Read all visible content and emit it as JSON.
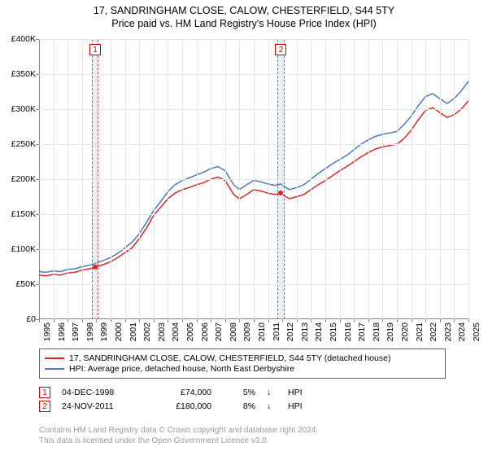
{
  "title": {
    "line1": "17, SANDRINGHAM CLOSE, CALOW, CHESTERFIELD, S44 5TY",
    "line2": "Price paid vs. HM Land Registry's House Price Index (HPI)"
  },
  "chart": {
    "type": "line",
    "background_color": "#ffffff",
    "grid_color": "#e5e5e5",
    "axis_color": "#888888",
    "x_axis": {
      "min": 1995,
      "max": 2025,
      "ticks": [
        1995,
        1996,
        1997,
        1998,
        1999,
        2000,
        2001,
        2002,
        2003,
        2004,
        2005,
        2006,
        2007,
        2008,
        2009,
        2010,
        2011,
        2012,
        2013,
        2014,
        2015,
        2016,
        2017,
        2018,
        2019,
        2020,
        2021,
        2022,
        2023,
        2024,
        2025
      ],
      "label_fontsize": 10.5,
      "label_rotation": -90
    },
    "y_axis": {
      "min": 0,
      "max": 400000,
      "ticks": [
        0,
        50000,
        100000,
        150000,
        200000,
        250000,
        300000,
        350000,
        400000
      ],
      "tick_labels": [
        "£0",
        "£50K",
        "£100K",
        "£150K",
        "£200K",
        "£250K",
        "£300K",
        "£350K",
        "£400K"
      ],
      "label_fontsize": 10.5
    },
    "series": [
      {
        "name": "17, SANDRINGHAM CLOSE, CALOW, CHESTERFIELD, S44 5TY (detached house)",
        "color": "#d62728",
        "line_width": 1.5,
        "data": [
          [
            1995.0,
            63000
          ],
          [
            1995.5,
            62000
          ],
          [
            1996.0,
            64000
          ],
          [
            1996.5,
            63000
          ],
          [
            1997.0,
            66000
          ],
          [
            1997.5,
            67000
          ],
          [
            1998.0,
            70000
          ],
          [
            1998.5,
            72000
          ],
          [
            1998.92,
            74000
          ],
          [
            1999.0,
            75000
          ],
          [
            1999.5,
            78000
          ],
          [
            2000.0,
            82000
          ],
          [
            2000.5,
            88000
          ],
          [
            2001.0,
            95000
          ],
          [
            2001.5,
            102000
          ],
          [
            2002.0,
            115000
          ],
          [
            2002.5,
            130000
          ],
          [
            2003.0,
            148000
          ],
          [
            2003.5,
            160000
          ],
          [
            2004.0,
            172000
          ],
          [
            2004.5,
            180000
          ],
          [
            2005.0,
            185000
          ],
          [
            2005.5,
            188000
          ],
          [
            2006.0,
            192000
          ],
          [
            2006.5,
            195000
          ],
          [
            2007.0,
            200000
          ],
          [
            2007.5,
            203000
          ],
          [
            2008.0,
            198000
          ],
          [
            2008.3,
            188000
          ],
          [
            2008.6,
            178000
          ],
          [
            2009.0,
            172000
          ],
          [
            2009.5,
            178000
          ],
          [
            2010.0,
            185000
          ],
          [
            2010.5,
            183000
          ],
          [
            2011.0,
            180000
          ],
          [
            2011.5,
            178000
          ],
          [
            2011.9,
            180000
          ],
          [
            2012.0,
            178000
          ],
          [
            2012.5,
            172000
          ],
          [
            2013.0,
            175000
          ],
          [
            2013.5,
            178000
          ],
          [
            2014.0,
            185000
          ],
          [
            2014.5,
            192000
          ],
          [
            2015.0,
            198000
          ],
          [
            2015.5,
            205000
          ],
          [
            2016.0,
            212000
          ],
          [
            2016.5,
            218000
          ],
          [
            2017.0,
            225000
          ],
          [
            2017.5,
            232000
          ],
          [
            2018.0,
            238000
          ],
          [
            2018.5,
            243000
          ],
          [
            2019.0,
            246000
          ],
          [
            2019.5,
            248000
          ],
          [
            2020.0,
            250000
          ],
          [
            2020.5,
            258000
          ],
          [
            2021.0,
            270000
          ],
          [
            2021.5,
            285000
          ],
          [
            2022.0,
            298000
          ],
          [
            2022.5,
            302000
          ],
          [
            2023.0,
            295000
          ],
          [
            2023.5,
            288000
          ],
          [
            2024.0,
            292000
          ],
          [
            2024.5,
            300000
          ],
          [
            2025.0,
            312000
          ]
        ]
      },
      {
        "name": "HPI: Average price, detached house, North East Derbyshire",
        "color": "#4a7bb8",
        "line_width": 1.5,
        "data": [
          [
            1995.0,
            68000
          ],
          [
            1995.5,
            67000
          ],
          [
            1996.0,
            69000
          ],
          [
            1996.5,
            68000
          ],
          [
            1997.0,
            71000
          ],
          [
            1997.5,
            72000
          ],
          [
            1998.0,
            75000
          ],
          [
            1998.5,
            77000
          ],
          [
            1999.0,
            80000
          ],
          [
            1999.5,
            84000
          ],
          [
            2000.0,
            88000
          ],
          [
            2000.5,
            94000
          ],
          [
            2001.0,
            102000
          ],
          [
            2001.5,
            110000
          ],
          [
            2002.0,
            122000
          ],
          [
            2002.5,
            138000
          ],
          [
            2003.0,
            155000
          ],
          [
            2003.5,
            168000
          ],
          [
            2004.0,
            182000
          ],
          [
            2004.5,
            192000
          ],
          [
            2005.0,
            198000
          ],
          [
            2005.5,
            202000
          ],
          [
            2006.0,
            206000
          ],
          [
            2006.5,
            210000
          ],
          [
            2007.0,
            215000
          ],
          [
            2007.5,
            218000
          ],
          [
            2008.0,
            212000
          ],
          [
            2008.3,
            202000
          ],
          [
            2008.6,
            192000
          ],
          [
            2009.0,
            185000
          ],
          [
            2009.5,
            192000
          ],
          [
            2010.0,
            198000
          ],
          [
            2010.5,
            196000
          ],
          [
            2011.0,
            193000
          ],
          [
            2011.5,
            191000
          ],
          [
            2011.9,
            193000
          ],
          [
            2012.0,
            191000
          ],
          [
            2012.5,
            185000
          ],
          [
            2013.0,
            188000
          ],
          [
            2013.5,
            192000
          ],
          [
            2014.0,
            200000
          ],
          [
            2014.5,
            208000
          ],
          [
            2015.0,
            215000
          ],
          [
            2015.5,
            222000
          ],
          [
            2016.0,
            228000
          ],
          [
            2016.5,
            234000
          ],
          [
            2017.0,
            242000
          ],
          [
            2017.5,
            250000
          ],
          [
            2018.0,
            256000
          ],
          [
            2018.5,
            261000
          ],
          [
            2019.0,
            264000
          ],
          [
            2019.5,
            266000
          ],
          [
            2020.0,
            268000
          ],
          [
            2020.5,
            278000
          ],
          [
            2021.0,
            290000
          ],
          [
            2021.5,
            305000
          ],
          [
            2022.0,
            318000
          ],
          [
            2022.5,
            322000
          ],
          [
            2023.0,
            315000
          ],
          [
            2023.5,
            308000
          ],
          [
            2024.0,
            315000
          ],
          [
            2024.5,
            326000
          ],
          [
            2025.0,
            340000
          ]
        ]
      }
    ],
    "sale_bands": [
      {
        "marker": "1",
        "x": 1998.92,
        "band_width_years": 0.5,
        "marker_color": "#d00000",
        "band_color": "#e8f0f8",
        "dot_y": 74000,
        "dot_color": "#d62728"
      },
      {
        "marker": "2",
        "x": 2011.9,
        "band_width_years": 0.5,
        "marker_color": "#d00000",
        "band_color": "#e8f0f8",
        "dot_y": 180000,
        "dot_color": "#d62728"
      }
    ]
  },
  "legend": {
    "items": [
      {
        "color": "#d62728",
        "label": "17, SANDRINGHAM CLOSE, CALOW, CHESTERFIELD, S44 5TY (detached house)"
      },
      {
        "color": "#4a7bb8",
        "label": "HPI: Average price, detached house, North East Derbyshire"
      }
    ]
  },
  "sales": [
    {
      "marker": "1",
      "date": "04-DEC-1998",
      "price": "£74,000",
      "pct": "5%",
      "arrow": "↓",
      "vs": "HPI"
    },
    {
      "marker": "2",
      "date": "24-NOV-2011",
      "price": "£180,000",
      "pct": "8%",
      "arrow": "↓",
      "vs": "HPI"
    }
  ],
  "footer": {
    "line1": "Contains HM Land Registry data © Crown copyright and database right 2024.",
    "line2": "This data is licensed under the Open Government Licence v3.0."
  }
}
